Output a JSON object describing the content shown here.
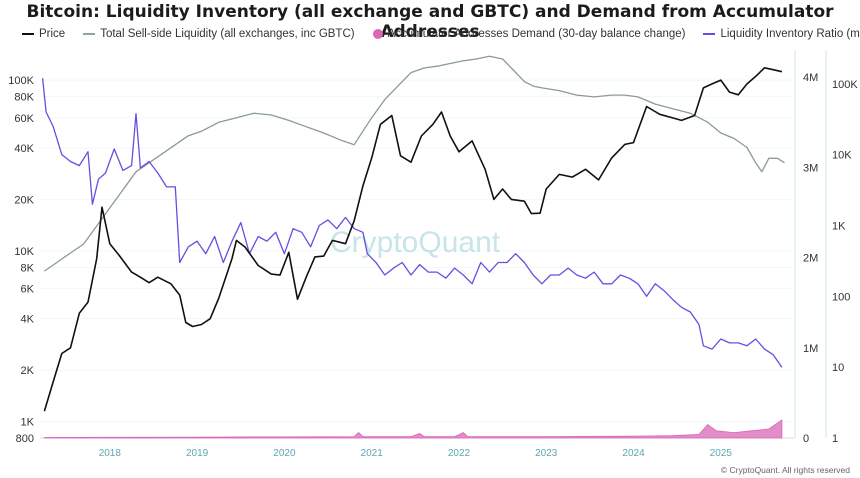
{
  "title": "Bitcoin: Liquidity Inventory (all exchange and GBTC) and Demand from Accumulator Addresses",
  "footer": "© CryptoQuant. All rights reserved",
  "watermark": "CryptoQuant",
  "legend": [
    {
      "label": "Price",
      "color": "#111111",
      "kind": "line"
    },
    {
      "label": "Total Sell-side Liquidity (all exchanges, inc GBTC)",
      "color": "#8fa3a6",
      "kind": "line"
    },
    {
      "label": "Accumulator Addresses Demand (30-day balance change)",
      "color": "#d966b8",
      "kind": "dot"
    },
    {
      "label": "Liquidity Inventory Ratio (months)",
      "color": "#6a4de0",
      "kind": "line"
    }
  ],
  "chart_data": {
    "type": "line",
    "x_ticks": [
      "2018",
      "2019",
      "2020",
      "2021",
      "2022",
      "2023",
      "2024",
      "2025"
    ],
    "x_range": [
      2017.25,
      2025.9
    ],
    "axes": {
      "price": {
        "side": "left",
        "scale": "log",
        "range": [
          800,
          150000
        ],
        "ticks": [
          "100K",
          "80K",
          "60K",
          "40K",
          "20K",
          "10K",
          "8K",
          "6K",
          "4K",
          "2K",
          "1K",
          "800"
        ],
        "tick_values": [
          100000,
          80000,
          60000,
          40000,
          20000,
          10000,
          8000,
          6000,
          4000,
          2000,
          1000,
          800
        ]
      },
      "liquidity": {
        "side": "right",
        "scale": "linear",
        "range": [
          0,
          4300000
        ],
        "ticks": [
          "4M",
          "3M",
          "2M",
          "1M",
          "0"
        ],
        "tick_values": [
          4000000,
          3000000,
          2000000,
          1000000,
          0
        ]
      },
      "ratio": {
        "side": "right-outer",
        "scale": "log",
        "range": [
          1,
          300000
        ],
        "ticks": [
          "100K",
          "10K",
          "1K",
          "100",
          "10",
          "1"
        ],
        "tick_values": [
          100000,
          10000,
          1000,
          100,
          10,
          1
        ]
      }
    },
    "series": [
      {
        "name": "Price",
        "axis": "price",
        "color": "#111111",
        "points": [
          [
            2017.3,
            1150
          ],
          [
            2017.4,
            1700
          ],
          [
            2017.5,
            2500
          ],
          [
            2017.6,
            2700
          ],
          [
            2017.7,
            4300
          ],
          [
            2017.8,
            5000
          ],
          [
            2017.9,
            9000
          ],
          [
            2017.96,
            18000
          ],
          [
            2018.05,
            11000
          ],
          [
            2018.15,
            9500
          ],
          [
            2018.3,
            7500
          ],
          [
            2018.4,
            7000
          ],
          [
            2018.5,
            6500
          ],
          [
            2018.6,
            7000
          ],
          [
            2018.75,
            6400
          ],
          [
            2018.85,
            5500
          ],
          [
            2018.92,
            3800
          ],
          [
            2019.0,
            3600
          ],
          [
            2019.1,
            3700
          ],
          [
            2019.2,
            4000
          ],
          [
            2019.3,
            5300
          ],
          [
            2019.45,
            9000
          ],
          [
            2019.5,
            11500
          ],
          [
            2019.6,
            10500
          ],
          [
            2019.75,
            8200
          ],
          [
            2019.9,
            7300
          ],
          [
            2020.0,
            7200
          ],
          [
            2020.1,
            9800
          ],
          [
            2020.2,
            5200
          ],
          [
            2020.3,
            7000
          ],
          [
            2020.4,
            9200
          ],
          [
            2020.5,
            9300
          ],
          [
            2020.6,
            11500
          ],
          [
            2020.75,
            11000
          ],
          [
            2020.85,
            15000
          ],
          [
            2020.95,
            24000
          ],
          [
            2021.05,
            35000
          ],
          [
            2021.15,
            55000
          ],
          [
            2021.28,
            62000
          ],
          [
            2021.38,
            36000
          ],
          [
            2021.5,
            33000
          ],
          [
            2021.62,
            47000
          ],
          [
            2021.75,
            55000
          ],
          [
            2021.85,
            65000
          ],
          [
            2021.95,
            47000
          ],
          [
            2022.05,
            38000
          ],
          [
            2022.2,
            44000
          ],
          [
            2022.35,
            30000
          ],
          [
            2022.45,
            20000
          ],
          [
            2022.55,
            23000
          ],
          [
            2022.65,
            20000
          ],
          [
            2022.8,
            19500
          ],
          [
            2022.88,
            16500
          ],
          [
            2022.98,
            16600
          ],
          [
            2023.05,
            23000
          ],
          [
            2023.2,
            28000
          ],
          [
            2023.35,
            27000
          ],
          [
            2023.5,
            30000
          ],
          [
            2023.65,
            26000
          ],
          [
            2023.8,
            35000
          ],
          [
            2023.95,
            42000
          ],
          [
            2024.05,
            43000
          ],
          [
            2024.2,
            70000
          ],
          [
            2024.35,
            63000
          ],
          [
            2024.5,
            60000
          ],
          [
            2024.6,
            58000
          ],
          [
            2024.75,
            62000
          ],
          [
            2024.85,
            90000
          ],
          [
            2024.95,
            95000
          ],
          [
            2025.05,
            100000
          ],
          [
            2025.15,
            85000
          ],
          [
            2025.25,
            82000
          ],
          [
            2025.35,
            95000
          ],
          [
            2025.45,
            105000
          ],
          [
            2025.55,
            118000
          ],
          [
            2025.65,
            115000
          ],
          [
            2025.75,
            112000
          ]
        ]
      },
      {
        "name": "Total Sell-side Liquidity (all exchanges, inc GBTC)",
        "axis": "liquidity",
        "color": "#8a9a9c",
        "points": [
          [
            2017.3,
            1850000
          ],
          [
            2017.45,
            1950000
          ],
          [
            2017.6,
            2050000
          ],
          [
            2017.75,
            2150000
          ],
          [
            2017.9,
            2350000
          ],
          [
            2018.05,
            2550000
          ],
          [
            2018.2,
            2750000
          ],
          [
            2018.35,
            2950000
          ],
          [
            2018.5,
            3050000
          ],
          [
            2018.65,
            3150000
          ],
          [
            2018.8,
            3250000
          ],
          [
            2018.95,
            3350000
          ],
          [
            2019.1,
            3400000
          ],
          [
            2019.3,
            3500000
          ],
          [
            2019.5,
            3550000
          ],
          [
            2019.7,
            3600000
          ],
          [
            2019.9,
            3580000
          ],
          [
            2020.1,
            3520000
          ],
          [
            2020.3,
            3450000
          ],
          [
            2020.5,
            3380000
          ],
          [
            2020.7,
            3300000
          ],
          [
            2020.85,
            3250000
          ],
          [
            2020.95,
            3400000
          ],
          [
            2021.05,
            3550000
          ],
          [
            2021.2,
            3750000
          ],
          [
            2021.35,
            3900000
          ],
          [
            2021.5,
            4050000
          ],
          [
            2021.65,
            4100000
          ],
          [
            2021.8,
            4120000
          ],
          [
            2021.95,
            4150000
          ],
          [
            2022.1,
            4180000
          ],
          [
            2022.25,
            4200000
          ],
          [
            2022.4,
            4230000
          ],
          [
            2022.55,
            4200000
          ],
          [
            2022.65,
            4100000
          ],
          [
            2022.8,
            3950000
          ],
          [
            2022.9,
            3900000
          ],
          [
            2023.0,
            3880000
          ],
          [
            2023.2,
            3850000
          ],
          [
            2023.4,
            3800000
          ],
          [
            2023.6,
            3780000
          ],
          [
            2023.8,
            3800000
          ],
          [
            2023.95,
            3800000
          ],
          [
            2024.1,
            3780000
          ],
          [
            2024.3,
            3700000
          ],
          [
            2024.5,
            3650000
          ],
          [
            2024.7,
            3600000
          ],
          [
            2024.9,
            3500000
          ],
          [
            2025.05,
            3380000
          ],
          [
            2025.2,
            3320000
          ],
          [
            2025.35,
            3220000
          ],
          [
            2025.45,
            3050000
          ],
          [
            2025.52,
            2950000
          ],
          [
            2025.6,
            3100000
          ],
          [
            2025.7,
            3100000
          ],
          [
            2025.78,
            3050000
          ]
        ]
      },
      {
        "name": "Liquidity Inventory Ratio (months)",
        "axis": "ratio",
        "color": "#6a4de0",
        "points": [
          [
            2017.28,
            120000
          ],
          [
            2017.32,
            40000
          ],
          [
            2017.4,
            25000
          ],
          [
            2017.5,
            10000
          ],
          [
            2017.6,
            8000
          ],
          [
            2017.7,
            7000
          ],
          [
            2017.8,
            11000
          ],
          [
            2017.85,
            2000
          ],
          [
            2017.92,
            4500
          ],
          [
            2018.0,
            5500
          ],
          [
            2018.1,
            12000
          ],
          [
            2018.2,
            6000
          ],
          [
            2018.3,
            7000
          ],
          [
            2018.35,
            38000
          ],
          [
            2018.4,
            6500
          ],
          [
            2018.5,
            8000
          ],
          [
            2018.6,
            5500
          ],
          [
            2018.7,
            3500
          ],
          [
            2018.8,
            3500
          ],
          [
            2018.85,
            300
          ],
          [
            2018.95,
            500
          ],
          [
            2019.05,
            600
          ],
          [
            2019.15,
            400
          ],
          [
            2019.25,
            700
          ],
          [
            2019.35,
            300
          ],
          [
            2019.45,
            600
          ],
          [
            2019.55,
            1100
          ],
          [
            2019.65,
            400
          ],
          [
            2019.75,
            700
          ],
          [
            2019.85,
            600
          ],
          [
            2019.95,
            800
          ],
          [
            2020.05,
            400
          ],
          [
            2020.15,
            900
          ],
          [
            2020.25,
            800
          ],
          [
            2020.35,
            500
          ],
          [
            2020.45,
            1000
          ],
          [
            2020.55,
            1200
          ],
          [
            2020.65,
            900
          ],
          [
            2020.75,
            1300
          ],
          [
            2020.85,
            900
          ],
          [
            2020.95,
            800
          ],
          [
            2021.0,
            400
          ],
          [
            2021.1,
            300
          ],
          [
            2021.2,
            200
          ],
          [
            2021.3,
            250
          ],
          [
            2021.4,
            300
          ],
          [
            2021.5,
            200
          ],
          [
            2021.6,
            280
          ],
          [
            2021.7,
            220
          ],
          [
            2021.8,
            220
          ],
          [
            2021.9,
            180
          ],
          [
            2022.0,
            250
          ],
          [
            2022.1,
            200
          ],
          [
            2022.2,
            150
          ],
          [
            2022.3,
            300
          ],
          [
            2022.4,
            220
          ],
          [
            2022.5,
            300
          ],
          [
            2022.6,
            300
          ],
          [
            2022.7,
            400
          ],
          [
            2022.8,
            300
          ],
          [
            2022.9,
            200
          ],
          [
            2023.0,
            150
          ],
          [
            2023.1,
            200
          ],
          [
            2023.2,
            200
          ],
          [
            2023.3,
            250
          ],
          [
            2023.4,
            200
          ],
          [
            2023.5,
            180
          ],
          [
            2023.6,
            220
          ],
          [
            2023.7,
            150
          ],
          [
            2023.8,
            150
          ],
          [
            2023.9,
            200
          ],
          [
            2024.0,
            180
          ],
          [
            2024.1,
            150
          ],
          [
            2024.2,
            100
          ],
          [
            2024.3,
            150
          ],
          [
            2024.4,
            120
          ],
          [
            2024.5,
            90
          ],
          [
            2024.6,
            70
          ],
          [
            2024.7,
            60
          ],
          [
            2024.8,
            40
          ],
          [
            2024.85,
            20
          ],
          [
            2024.95,
            18
          ],
          [
            2025.05,
            25
          ],
          [
            2025.15,
            22
          ],
          [
            2025.25,
            22
          ],
          [
            2025.35,
            20
          ],
          [
            2025.45,
            25
          ],
          [
            2025.55,
            18
          ],
          [
            2025.65,
            15
          ],
          [
            2025.75,
            10
          ]
        ]
      },
      {
        "name": "Accumulator Addresses Demand (30-day balance change)",
        "axis": "liquidity",
        "color": "#d966b8",
        "kind": "area",
        "points": [
          [
            2017.3,
            5000
          ],
          [
            2018.0,
            8000
          ],
          [
            2019.0,
            10000
          ],
          [
            2020.0,
            12000
          ],
          [
            2020.85,
            15000
          ],
          [
            2020.9,
            60000
          ],
          [
            2020.95,
            15000
          ],
          [
            2021.5,
            15000
          ],
          [
            2021.6,
            50000
          ],
          [
            2021.65,
            15000
          ],
          [
            2022.0,
            15000
          ],
          [
            2022.1,
            60000
          ],
          [
            2022.15,
            15000
          ],
          [
            2023.0,
            15000
          ],
          [
            2024.0,
            20000
          ],
          [
            2024.5,
            25000
          ],
          [
            2024.8,
            40000
          ],
          [
            2024.9,
            150000
          ],
          [
            2025.0,
            80000
          ],
          [
            2025.2,
            60000
          ],
          [
            2025.4,
            80000
          ],
          [
            2025.6,
            100000
          ],
          [
            2025.75,
            200000
          ]
        ]
      }
    ]
  }
}
